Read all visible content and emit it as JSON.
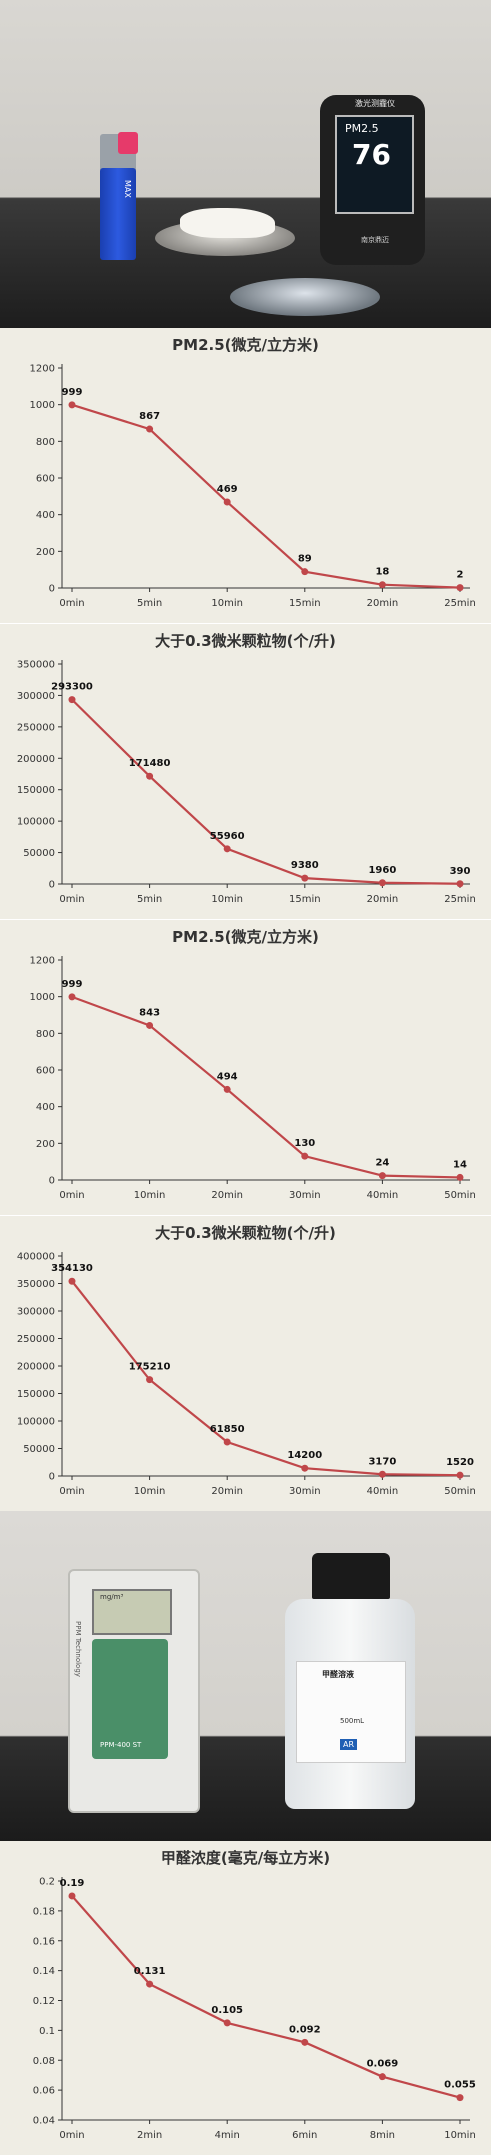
{
  "photo1": {
    "lighter_text": "MAX",
    "meter_title": "激光测霾仪",
    "meter_pm_label": "PM2.5",
    "meter_value": "76",
    "meter_brand": "南京鼎迈"
  },
  "photo2": {
    "meter_unit": "mg/m³",
    "meter_model": "PPM-400 ST",
    "meter_side": "PPM Technology",
    "bottle_name": "甲醛溶液",
    "bottle_volume": "500mL",
    "bottle_grade": "AR"
  },
  "colors": {
    "line": "#c0474a",
    "panel": "#efede4",
    "axis": "#333333"
  },
  "chart_data": [
    {
      "type": "line",
      "title": "PM2.5(微克/立方米)",
      "categories": [
        "0min",
        "5min",
        "10min",
        "15min",
        "20min",
        "25min"
      ],
      "values": [
        999,
        867,
        469,
        89,
        18,
        2
      ],
      "value_labels": [
        "999",
        "867",
        "469",
        "89",
        "18",
        "2"
      ],
      "ylim": [
        0,
        1200
      ],
      "yticks": [
        0,
        200,
        400,
        600,
        800,
        1000,
        1200
      ],
      "ytick_labels": [
        "0",
        "200",
        "400",
        "600",
        "800",
        "1000",
        "1200"
      ],
      "grid": false
    },
    {
      "type": "line",
      "title": "大于0.3微米颗粒物(个/升)",
      "categories": [
        "0min",
        "5min",
        "10min",
        "15min",
        "20min",
        "25min"
      ],
      "values": [
        293300,
        171480,
        55960,
        9380,
        1960,
        390
      ],
      "value_labels": [
        "293300",
        "171480",
        "55960",
        "9380",
        "1960",
        "390"
      ],
      "ylim": [
        0,
        350000
      ],
      "yticks": [
        0,
        50000,
        100000,
        150000,
        200000,
        250000,
        300000,
        350000
      ],
      "ytick_labels": [
        "0",
        "50000",
        "100000",
        "150000",
        "200000",
        "250000",
        "300000",
        "350000"
      ],
      "grid": false
    },
    {
      "type": "line",
      "title": "PM2.5(微克/立方米)",
      "categories": [
        "0min",
        "10min",
        "20min",
        "30min",
        "40min",
        "50min"
      ],
      "values": [
        999,
        843,
        494,
        130,
        24,
        14
      ],
      "value_labels": [
        "999",
        "843",
        "494",
        "130",
        "24",
        "14"
      ],
      "ylim": [
        0,
        1200
      ],
      "yticks": [
        0,
        200,
        400,
        600,
        800,
        1000,
        1200
      ],
      "ytick_labels": [
        "0",
        "200",
        "400",
        "600",
        "800",
        "1000",
        "1200"
      ],
      "grid": false
    },
    {
      "type": "line",
      "title": "大于0.3微米颗粒物(个/升)",
      "categories": [
        "0min",
        "10min",
        "20min",
        "30min",
        "40min",
        "50min"
      ],
      "values": [
        354130,
        175210,
        61850,
        14200,
        3170,
        1520
      ],
      "value_labels": [
        "354130",
        "175210",
        "61850",
        "14200",
        "3170",
        "1520"
      ],
      "ylim": [
        0,
        400000
      ],
      "yticks": [
        0,
        50000,
        100000,
        150000,
        200000,
        250000,
        300000,
        350000,
        400000
      ],
      "ytick_labels": [
        "0",
        "50000",
        "100000",
        "150000",
        "200000",
        "250000",
        "300000",
        "350000",
        "400000"
      ],
      "grid": false
    },
    {
      "type": "line",
      "title": "甲醛浓度(毫克/每立方米)",
      "categories": [
        "0min",
        "2min",
        "4min",
        "6min",
        "8min",
        "10min"
      ],
      "values": [
        0.19,
        0.131,
        0.105,
        0.092,
        0.069,
        0.055
      ],
      "value_labels": [
        "0.19",
        "0.131",
        "0.105",
        "0.092",
        "0.069",
        "0.055"
      ],
      "ylim": [
        0.04,
        0.2
      ],
      "yticks": [
        0.04,
        0.06,
        0.08,
        0.1,
        0.12,
        0.14,
        0.16,
        0.18,
        0.2
      ],
      "ytick_labels": [
        "0.04",
        "0.06",
        "0.08",
        "0.1",
        "0.12",
        "0.14",
        "0.16",
        "0.18",
        "0.2"
      ],
      "grid": false
    }
  ]
}
